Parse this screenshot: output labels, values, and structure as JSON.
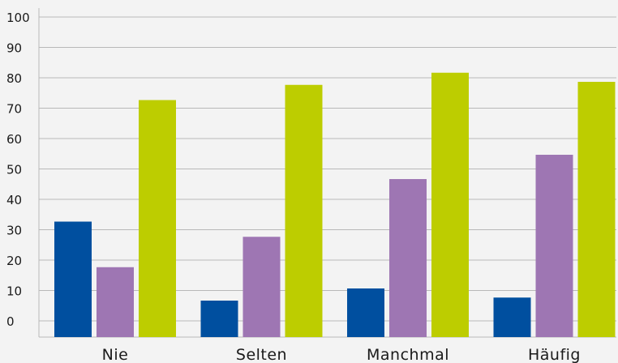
{
  "chart_data": {
    "type": "bar",
    "title": "",
    "xlabel": "",
    "ylabel": "",
    "categories": [
      "Nie",
      "Selten",
      "Manchmal",
      "Häufig"
    ],
    "series": [
      {
        "color": "#004f9f",
        "values": [
          38,
          12,
          16,
          13
        ]
      },
      {
        "color": "#9e76b3",
        "values": [
          23,
          33,
          52,
          60
        ]
      },
      {
        "color": "#bdcd00",
        "values": [
          78,
          83,
          87,
          84
        ]
      }
    ],
    "yticks": [
      "0",
      "10",
      "20",
      "30",
      "40",
      "50",
      "60",
      "70",
      "80",
      "90",
      "100"
    ],
    "yTickValues": [
      0,
      10,
      20,
      30,
      40,
      50,
      60,
      70,
      80,
      90,
      100
    ],
    "grid": true,
    "legend": "none"
  }
}
